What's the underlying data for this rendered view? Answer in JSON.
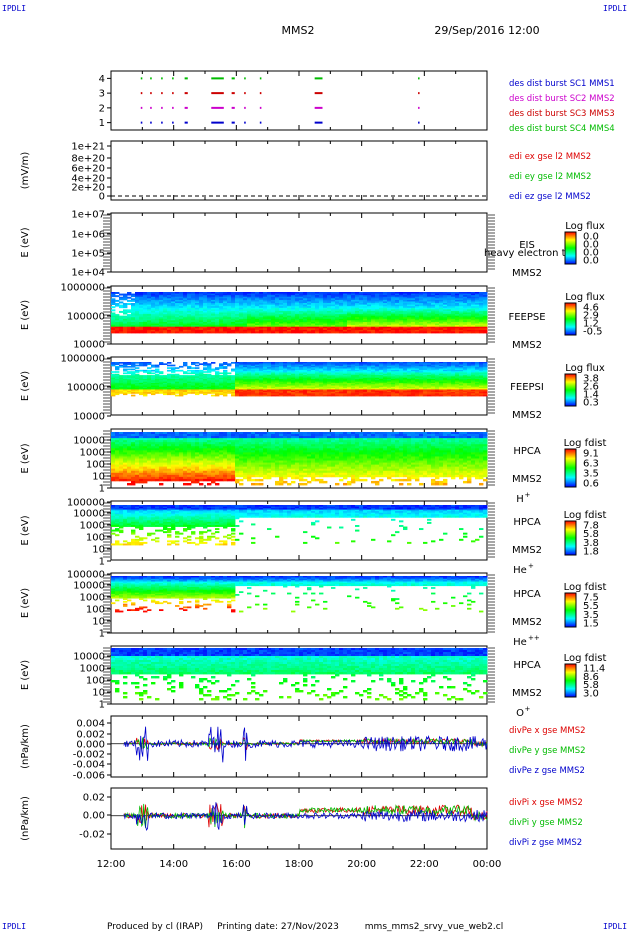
{
  "header": {
    "corner_label": "IPDLI",
    "spacecraft": "MMS2",
    "date": "29/Sep/2016 12:00"
  },
  "footer": {
    "produced_by": "Produced by cl (IRAP)",
    "printing_date": "Printing date: 27/Nov/2023",
    "script_name": "mms_mms2_srvy_vue_web2.cl"
  },
  "time_axis": {
    "ticks": [
      "12:00",
      "14:00",
      "16:00",
      "18:00",
      "20:00",
      "22:00",
      "00:00"
    ]
  },
  "colors": {
    "mms1": "#0000cc",
    "mms2": "#cc00cc",
    "mms3": "#cc0000",
    "mms4": "#00bb00",
    "x": "#dd0000",
    "y": "#00bb00",
    "z": "#0000cc"
  },
  "panels": {
    "burst": {
      "yticks": [
        "4",
        "3",
        "2",
        "1"
      ],
      "legend": [
        {
          "text": "des dist burst SC1 MMS1",
          "color": "#0000cc"
        },
        {
          "text": "des dist burst SC2 MMS2",
          "color": "#cc00cc"
        },
        {
          "text": "des dist burst SC3 MMS3",
          "color": "#cc0000"
        },
        {
          "text": "des dist burst SC4 MMS4",
          "color": "#00bb00"
        }
      ]
    },
    "edi": {
      "ylabel": "(mV/m)",
      "yticks": [
        "1e+21",
        "8e+20",
        "6e+20",
        "4e+20",
        "2e+20",
        "0"
      ],
      "legend": [
        {
          "text": "edi ex gse l2 MMS2",
          "color": "#dd0000"
        },
        {
          "text": "edi ey gse l2 MMS2",
          "color": "#00bb00"
        },
        {
          "text": "edi ez gse l2 MMS2",
          "color": "#0000cc"
        }
      ]
    },
    "eis": {
      "ylabel": "E (eV)",
      "yticks": [
        "1e+07",
        "1e+06",
        "1e+05",
        "1e+04"
      ],
      "instrument": "EIS",
      "overlay": "heavy electron to",
      "spacecraft": "MMS2",
      "cbar_title": "Log flux",
      "cbar_ticks": [
        "0.0",
        "0.0",
        "0.0",
        "0.0"
      ]
    },
    "feepse": {
      "ylabel": "E (eV)",
      "yticks": [
        "1000000",
        "100000",
        "10000"
      ],
      "instrument": "FEEPSE",
      "spacecraft": "MMS2",
      "cbar_title": "Log flux",
      "cbar_ticks": [
        "4.6",
        "2.9",
        "1.2",
        "-0.5"
      ]
    },
    "feepsi": {
      "ylabel": "E (eV)",
      "yticks": [
        "1000000",
        "100000",
        "10000"
      ],
      "instrument": "FEEPSI",
      "spacecraft": "MMS2",
      "cbar_title": "Log flux",
      "cbar_ticks": [
        "3.8",
        "2.6",
        "1.4",
        "0.3"
      ]
    },
    "hpca_h": {
      "ylabel": "E (eV)",
      "yticks": [
        "10000",
        "1000",
        "100",
        "10",
        "1"
      ],
      "instrument": "HPCA",
      "spacecraft": "MMS2",
      "species": "H",
      "charge": "+",
      "cbar_title": "Log fdist",
      "cbar_ticks": [
        "9.1",
        "6.3",
        "3.5",
        "0.6"
      ]
    },
    "hpca_he1": {
      "ylabel": "E (eV)",
      "yticks": [
        "100000",
        "10000",
        "1000",
        "100",
        "10",
        "1"
      ],
      "instrument": "HPCA",
      "spacecraft": "MMS2",
      "species": "He",
      "charge": "+",
      "cbar_title": "Log fdist",
      "cbar_ticks": [
        "7.8",
        "5.8",
        "3.8",
        "1.8"
      ]
    },
    "hpca_he2": {
      "ylabel": "E (eV)",
      "yticks": [
        "100000",
        "10000",
        "1000",
        "100",
        "10",
        "1"
      ],
      "instrument": "HPCA",
      "spacecraft": "MMS2",
      "species": "He",
      "charge": "++",
      "cbar_title": "Log fdist",
      "cbar_ticks": [
        "7.5",
        "5.5",
        "3.5",
        "1.5"
      ]
    },
    "hpca_o": {
      "ylabel": "E (eV)",
      "yticks": [
        "10000",
        "1000",
        "100",
        "10",
        "1"
      ],
      "instrument": "HPCA",
      "spacecraft": "MMS2",
      "species": "O",
      "charge": "+",
      "cbar_title": "Log fdist",
      "cbar_ticks": [
        "11.4",
        "8.6",
        "5.8",
        "3.0"
      ]
    },
    "divpe": {
      "ylabel": "(nPa/km)",
      "yticks": [
        "0.004",
        "0.002",
        "0.000",
        "-0.002",
        "-0.004",
        "-0.006"
      ],
      "legend": [
        {
          "text": "divPe x gse MMS2",
          "color": "#dd0000"
        },
        {
          "text": "divPe y gse MMS2",
          "color": "#00bb00"
        },
        {
          "text": "divPe z gse MMS2",
          "color": "#0000cc"
        }
      ]
    },
    "divpi": {
      "ylabel": "(nPa/km)",
      "yticks": [
        "0.02",
        "0.00",
        "-0.02"
      ],
      "legend": [
        {
          "text": "divPi x gse MMS2",
          "color": "#dd0000"
        },
        {
          "text": "divPi y gse MMS2",
          "color": "#00bb00"
        },
        {
          "text": "divPi z gse MMS2",
          "color": "#0000cc"
        }
      ]
    }
  },
  "chart_data": [
    {
      "type": "scatter",
      "name": "burst",
      "x_range": [
        "12:00",
        "00:00"
      ],
      "ylim": [
        0.5,
        4.5
      ],
      "series": [
        {
          "name": "des dist burst SC1 MMS1",
          "y": 1,
          "intervals": [
            [
              12.95,
              13.0
            ],
            [
              13.25,
              13.3
            ],
            [
              13.6,
              13.65
            ],
            [
              13.95,
              14.0
            ],
            [
              14.35,
              14.45
            ],
            [
              15.2,
              15.6
            ],
            [
              15.85,
              15.95
            ],
            [
              16.25,
              16.3
            ],
            [
              16.75,
              16.8
            ],
            [
              18.5,
              18.75
            ],
            [
              21.8,
              21.82
            ]
          ]
        },
        {
          "name": "des dist burst SC2 MMS2",
          "y": 2,
          "intervals": [
            [
              12.95,
              13.0
            ],
            [
              13.25,
              13.3
            ],
            [
              13.6,
              13.65
            ],
            [
              13.95,
              14.0
            ],
            [
              14.35,
              14.45
            ],
            [
              15.2,
              15.6
            ],
            [
              15.85,
              15.95
            ],
            [
              16.25,
              16.3
            ],
            [
              16.75,
              16.8
            ],
            [
              18.5,
              18.75
            ],
            [
              21.8,
              21.82
            ]
          ]
        },
        {
          "name": "des dist burst SC3 MMS3",
          "y": 3,
          "intervals": [
            [
              12.95,
              13.0
            ],
            [
              13.25,
              13.3
            ],
            [
              13.6,
              13.65
            ],
            [
              13.95,
              14.0
            ],
            [
              14.35,
              14.45
            ],
            [
              15.2,
              15.6
            ],
            [
              15.85,
              15.95
            ],
            [
              16.25,
              16.3
            ],
            [
              16.75,
              16.8
            ],
            [
              18.5,
              18.75
            ],
            [
              21.8,
              21.82
            ]
          ]
        },
        {
          "name": "des dist burst SC4 MMS4",
          "y": 4,
          "intervals": [
            [
              12.95,
              13.0
            ],
            [
              13.25,
              13.3
            ],
            [
              13.6,
              13.65
            ],
            [
              13.95,
              14.0
            ],
            [
              14.35,
              14.45
            ],
            [
              15.2,
              15.6
            ],
            [
              15.85,
              15.95
            ],
            [
              16.25,
              16.3
            ],
            [
              16.75,
              16.8
            ],
            [
              18.5,
              18.75
            ],
            [
              21.8,
              21.82
            ]
          ]
        }
      ]
    },
    {
      "type": "line",
      "name": "edi",
      "ylim": [
        0,
        1e+21
      ],
      "ylabel": "(mV/m)",
      "note_values": "all three components near 0 (dashed baseline)"
    },
    {
      "type": "heatmap",
      "name": "feepse",
      "ylabel": "E (eV)",
      "ylim": [
        10000,
        1000000
      ],
      "zlim": [
        -0.5,
        4.6
      ],
      "segments": [
        {
          "t": [
            12.0,
            13.0
          ],
          "high_level": 0.35
        },
        {
          "t": [
            13.0,
            15.5
          ],
          "high_level": 0.4
        },
        {
          "t": [
            15.5,
            16.3
          ],
          "high_level": 0.45
        },
        {
          "t": [
            16.3,
            19.5
          ],
          "high_level": 0.6
        },
        {
          "t": [
            19.5,
            24.0
          ],
          "high_level": 0.75
        }
      ]
    },
    {
      "type": "heatmap",
      "name": "feepsi",
      "ylabel": "E (eV)",
      "ylim": [
        10000,
        1000000
      ],
      "zlim": [
        0.3,
        3.8
      ],
      "segments": [
        {
          "t": [
            12.0,
            16.0
          ],
          "high_level": 0.35
        },
        {
          "t": [
            16.0,
            24.0
          ],
          "high_level": 0.75
        }
      ]
    },
    {
      "type": "heatmap",
      "name": "hpca_h",
      "ylabel": "E (eV)",
      "ylim": [
        1,
        10000
      ],
      "zlim": [
        0.6,
        9.1
      ],
      "segments": [
        {
          "t": [
            12.0,
            16.0
          ],
          "high_level": 0.85
        },
        {
          "t": [
            16.0,
            24.0
          ],
          "high_level": 0.6
        }
      ]
    },
    {
      "type": "heatmap",
      "name": "hpca_he1",
      "ylabel": "E (eV)",
      "ylim": [
        1,
        100000
      ],
      "zlim": [
        1.8,
        7.8
      ],
      "segments": [
        {
          "t": [
            12.0,
            16.0
          ],
          "high_level": 0.55
        },
        {
          "t": [
            16.0,
            24.0
          ],
          "high_level": 0.35
        }
      ]
    },
    {
      "type": "heatmap",
      "name": "hpca_he2",
      "ylabel": "E (eV)",
      "ylim": [
        1,
        100000
      ],
      "zlim": [
        1.5,
        7.5
      ],
      "segments": [
        {
          "t": [
            12.0,
            16.0
          ],
          "high_level": 0.7
        },
        {
          "t": [
            16.0,
            24.0
          ],
          "high_level": 0.35
        }
      ]
    },
    {
      "type": "heatmap",
      "name": "hpca_o",
      "ylabel": "E (eV)",
      "ylim": [
        1,
        10000
      ],
      "zlim": [
        3.0,
        11.4
      ],
      "segments": [
        {
          "t": [
            12.0,
            24.0
          ],
          "high_level": 0.4
        }
      ]
    },
    {
      "type": "line",
      "name": "divpe",
      "ylabel": "(nPa/km)",
      "ylim": [
        -0.006,
        0.005
      ],
      "series": [
        {
          "name": "divPe x gse MMS2",
          "approx_range": [
            -0.001,
            0.002
          ]
        },
        {
          "name": "divPe y gse MMS2",
          "approx_range": [
            -0.001,
            0.002
          ]
        },
        {
          "name": "divPe z gse MMS2",
          "approx_range": [
            -0.005,
            0.004
          ]
        }
      ]
    },
    {
      "type": "line",
      "name": "divpi",
      "ylabel": "(nPa/km)",
      "ylim": [
        -0.03,
        0.025
      ],
      "series": [
        {
          "name": "divPi x gse MMS2",
          "approx_range": [
            -0.01,
            0.02
          ]
        },
        {
          "name": "divPi y gse MMS2",
          "approx_range": [
            -0.01,
            0.02
          ]
        },
        {
          "name": "divPi z gse MMS2",
          "approx_range": [
            -0.02,
            0.015
          ]
        }
      ]
    }
  ]
}
